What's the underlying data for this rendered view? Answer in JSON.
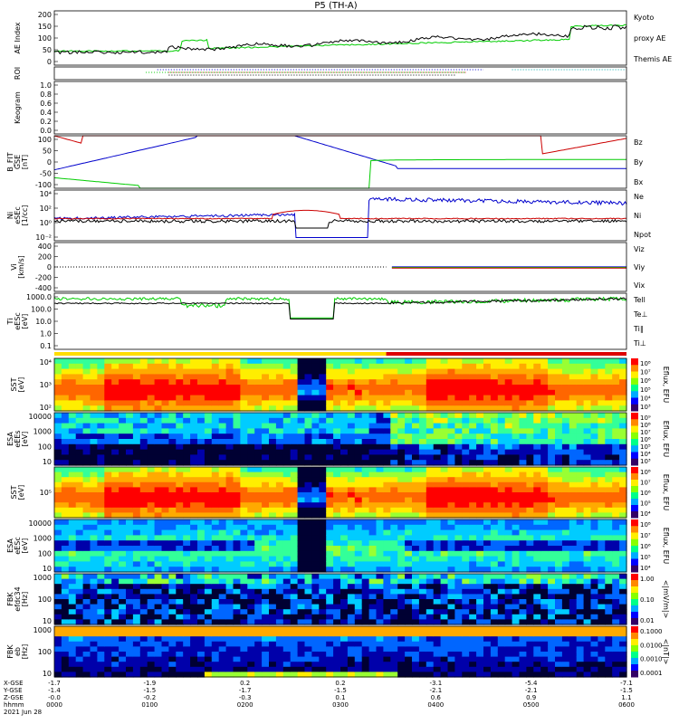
{
  "title": "P5 (TH-A)",
  "colors": {
    "black": "#000000",
    "red": "#cc0000",
    "green": "#00cc00",
    "blue": "#0000cc"
  },
  "chart_data": [
    {
      "id": "ae",
      "type": "line",
      "ylabel": "AE Index",
      "yticks": [
        "200",
        "150",
        "100",
        "50",
        "0"
      ],
      "ylim": [
        -10,
        220
      ],
      "legend": [
        {
          "text": "Kyoto",
          "color": "#00cc00"
        },
        {
          "text": "proxy AE",
          "color": "#00cc00"
        },
        {
          "text": "Themis AE",
          "color": "#000000"
        }
      ]
    },
    {
      "id": "roi",
      "type": "line",
      "ylabel": "ROI",
      "yticks": []
    },
    {
      "id": "keo",
      "type": "line",
      "ylabel": "Keogram",
      "yticks": [
        "1.0",
        "0.8",
        "0.6",
        "0.4",
        "0.2",
        "0.0"
      ],
      "ylim": [
        0,
        1
      ]
    },
    {
      "id": "bfit",
      "type": "line",
      "ylabel": "B_FIT",
      "ylabel2": "GSE",
      "ylabel3": "[nT]",
      "yticks": [
        "100",
        "50",
        "0",
        "-50",
        "-100"
      ],
      "ylim": [
        -100,
        100
      ],
      "legend": [
        {
          "text": "Bz",
          "color": "#cc0000"
        },
        {
          "text": "By",
          "color": "#00cc00"
        },
        {
          "text": "Bx",
          "color": "#0000cc"
        }
      ]
    },
    {
      "id": "ni",
      "type": "line",
      "ylabel": "Ni",
      "ylabel2": "eSEc",
      "ylabel3": "[1/cc]",
      "yticks": [
        "10⁴",
        "10²",
        "10⁰",
        "10⁻²"
      ],
      "legend": [
        {
          "text": "Ne",
          "color": "#cc0000"
        },
        {
          "text": "Ni",
          "color": "#000000"
        },
        {
          "text": "Npot",
          "color": "#0000cc"
        }
      ]
    },
    {
      "id": "vi",
      "type": "line",
      "ylabel": "Vi",
      "ylabel2": "[km/s]",
      "yticks": [
        "400",
        "200",
        "0",
        "-200",
        "-400"
      ],
      "ylim": [
        -500,
        500
      ],
      "legend": [
        {
          "text": "Viz",
          "color": "#cc0000"
        },
        {
          "text": "Viy",
          "color": "#00cc00"
        },
        {
          "text": "Vix",
          "color": "#0000cc"
        }
      ]
    },
    {
      "id": "ti",
      "type": "line",
      "ylabel": "Ti",
      "ylabel2": "eESc",
      "ylabel3": "[eV]",
      "yticks": [
        "1000.0",
        "100.0",
        "10.0",
        "1.0",
        "0.1"
      ],
      "legend": [
        {
          "text": "Tell",
          "color": "#000000"
        },
        {
          "text": "Te⊥",
          "color": "#cc0000"
        },
        {
          "text": "Ti∥",
          "color": "#00cc00"
        },
        {
          "text": "Ti⊥",
          "color": "#0000cc"
        }
      ]
    },
    {
      "id": "sst1",
      "type": "heatmap",
      "ylabel": "SST",
      "ylabel2": "[eV]",
      "yticks": [
        "10⁴",
        "10³",
        "10²"
      ],
      "cbticks": [
        "10⁸",
        "10⁷",
        "10⁶",
        "10⁵",
        "10⁴",
        "10³"
      ],
      "cblabel": "Eflux, EFU"
    },
    {
      "id": "esa1",
      "type": "heatmap",
      "ylabel": "ESA",
      "ylabel2": "eEEs",
      "ylabel3": "[eV]",
      "yticks": [
        "10000",
        "1000",
        "100",
        "10"
      ],
      "cbticks": [
        "10⁹",
        "10⁸",
        "10⁷",
        "10⁶",
        "10⁵",
        "10⁴",
        "10³"
      ],
      "cblabel": "Eflux, EFU"
    },
    {
      "id": "sst2",
      "type": "heatmap",
      "ylabel": "SST",
      "ylabel2": "[eV]",
      "yticks": [
        "10⁵"
      ],
      "cbticks": [
        "10⁸",
        "10⁷",
        "10⁶",
        "10⁵",
        "10⁴"
      ],
      "cblabel": "Eflux, EFU"
    },
    {
      "id": "esa2",
      "type": "heatmap",
      "ylabel": "ESA",
      "ylabel2": "eESc",
      "ylabel3": "[eV]",
      "yticks": [
        "10000",
        "1000",
        "100",
        "10"
      ],
      "cbticks": [
        "10⁸",
        "10⁷",
        "10⁶",
        "10⁵",
        "10⁴"
      ],
      "cblabel": "Eflux, EFU"
    },
    {
      "id": "fbk1",
      "type": "heatmap",
      "ylabel": "FBK",
      "ylabel2": "efdc34",
      "ylabel3": "[Hz]",
      "yticks": [
        "1000",
        "100",
        "10"
      ],
      "cbticks": [
        "1.00",
        "0.10",
        "0.01"
      ],
      "cblabel": "<|mV/m|>"
    },
    {
      "id": "fbk2",
      "type": "heatmap",
      "ylabel": "FBK",
      "ylabel2": "eb",
      "ylabel3": "[Hz]",
      "yticks": [
        "1000",
        "100",
        "10"
      ],
      "cbticks": [
        "0.1000",
        "0.0100",
        "0.0010",
        "0.0001"
      ],
      "cblabel": "<|nT|>"
    }
  ],
  "xaxis": {
    "row_labels": [
      "X-GSE",
      "Y-GSE",
      "Z-GSE",
      "hhmm",
      "2021 Jun 28"
    ],
    "ticks": [
      {
        "vals": [
          "-1.7",
          "-1.4",
          "-0.0",
          "0000"
        ]
      },
      {
        "vals": [
          "-1.9",
          "-1.5",
          "-0.2",
          "0100"
        ]
      },
      {
        "vals": [
          "0.2",
          "-1.7",
          "-0.3",
          "0200"
        ]
      },
      {
        "vals": [
          "0.2",
          "-1.5",
          "0.1",
          "0300"
        ]
      },
      {
        "vals": [
          "-3.1",
          "-2.1",
          "0.6",
          "0400"
        ]
      },
      {
        "vals": [
          "-5.4",
          "-2.1",
          "0.9",
          "0500"
        ]
      },
      {
        "vals": [
          "-7.1",
          "-1.5",
          "1.1",
          "0600"
        ]
      }
    ]
  }
}
